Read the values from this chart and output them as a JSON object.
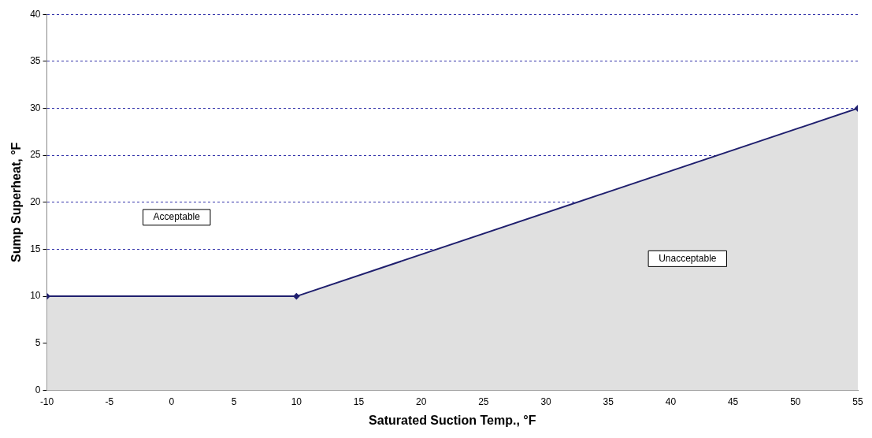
{
  "chart_data": {
    "type": "area",
    "xlabel": "Saturated Suction Temp., °F",
    "ylabel": "Sump Superheat, °F",
    "x": [
      -10,
      10,
      55
    ],
    "series": [
      {
        "type": "area",
        "color": "#e0e0e0",
        "values": [
          10,
          10,
          30
        ],
        "marker": "diamond"
      }
    ],
    "xlim": [
      -10,
      55
    ],
    "xticks": [
      -10,
      -5,
      0,
      5,
      10,
      15,
      20,
      25,
      30,
      35,
      40,
      45,
      50,
      55
    ],
    "ylim": [
      0,
      40
    ],
    "yticks": [
      0,
      5,
      10,
      15,
      20,
      25,
      30,
      35,
      40
    ],
    "grid": "y",
    "legend": false,
    "annotations": [
      "Acceptable",
      "Unacceptable"
    ]
  }
}
